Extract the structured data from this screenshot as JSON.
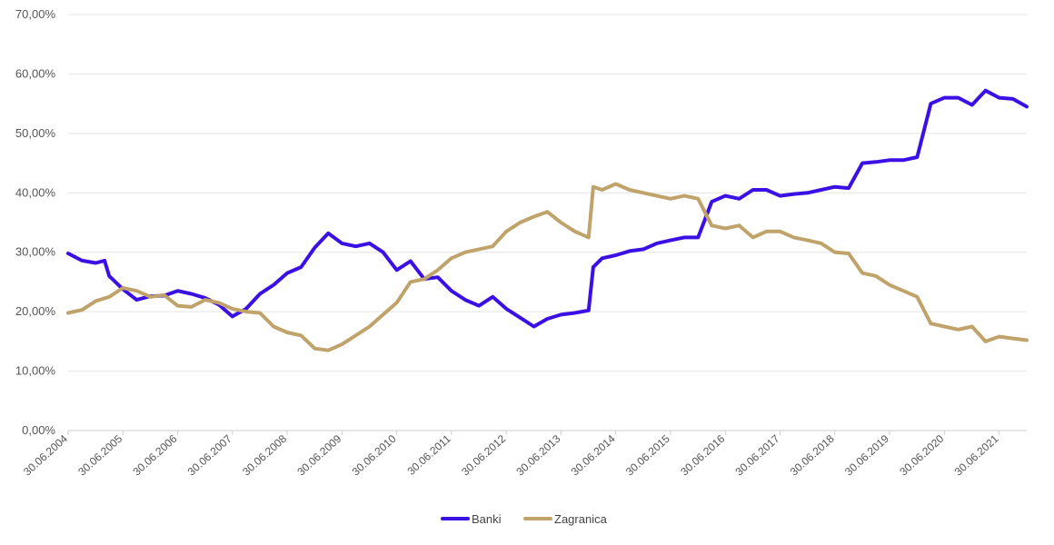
{
  "chart_data": {
    "type": "line",
    "title": "",
    "xlabel": "",
    "ylabel": "",
    "ylim": [
      0,
      70
    ],
    "ytick_values": [
      0,
      10,
      20,
      30,
      40,
      50,
      60,
      70
    ],
    "ytick_labels": [
      "0,00%",
      "10,00%",
      "20,00%",
      "30,00%",
      "40,00%",
      "50,00%",
      "60,00%",
      "70,00%"
    ],
    "xlim": [
      "2004-06-30",
      "2021-12-31"
    ],
    "x_ticks": [
      {
        "date": "2004-06-30",
        "label": "30.06.2004"
      },
      {
        "date": "2005-06-30",
        "label": "30.06.2005"
      },
      {
        "date": "2006-06-30",
        "label": "30.06.2006"
      },
      {
        "date": "2007-06-30",
        "label": "30.06.2007"
      },
      {
        "date": "2008-06-30",
        "label": "30.06.2008"
      },
      {
        "date": "2009-06-30",
        "label": "30.06.2009"
      },
      {
        "date": "2010-06-30",
        "label": "30.06.2010"
      },
      {
        "date": "2011-06-30",
        "label": "30.06.2011"
      },
      {
        "date": "2012-06-30",
        "label": "30.06.2012"
      },
      {
        "date": "2013-06-30",
        "label": "30.06.2013"
      },
      {
        "date": "2014-06-30",
        "label": "30.06.2014"
      },
      {
        "date": "2015-06-30",
        "label": "30.06.2015"
      },
      {
        "date": "2016-06-30",
        "label": "30.06.2016"
      },
      {
        "date": "2017-06-30",
        "label": "30.06.2017"
      },
      {
        "date": "2018-06-30",
        "label": "30.06.2018"
      },
      {
        "date": "2019-06-30",
        "label": "30.06.2019"
      },
      {
        "date": "2020-06-30",
        "label": "30.06.2020"
      },
      {
        "date": "2021-06-30",
        "label": "30.06.2021"
      }
    ],
    "grid": true,
    "legend_position": "bottom-center",
    "series": [
      {
        "name": "Banki",
        "color": "#3a10e5",
        "points": [
          [
            "2004-06-30",
            29.8
          ],
          [
            "2004-09-30",
            28.6
          ],
          [
            "2004-12-31",
            28.2
          ],
          [
            "2005-02-28",
            28.6
          ],
          [
            "2005-03-31",
            26.0
          ],
          [
            "2005-06-30",
            23.8
          ],
          [
            "2005-09-30",
            22.0
          ],
          [
            "2005-12-31",
            22.6
          ],
          [
            "2006-03-31",
            22.7
          ],
          [
            "2006-06-30",
            23.5
          ],
          [
            "2006-09-30",
            23.0
          ],
          [
            "2006-12-31",
            22.3
          ],
          [
            "2007-03-31",
            21.2
          ],
          [
            "2007-06-30",
            19.2
          ],
          [
            "2007-09-30",
            20.5
          ],
          [
            "2007-12-31",
            23.0
          ],
          [
            "2008-03-31",
            24.5
          ],
          [
            "2008-06-30",
            26.5
          ],
          [
            "2008-09-30",
            27.5
          ],
          [
            "2008-12-31",
            30.8
          ],
          [
            "2009-03-31",
            33.2
          ],
          [
            "2009-06-30",
            31.5
          ],
          [
            "2009-09-30",
            31.0
          ],
          [
            "2009-12-31",
            31.5
          ],
          [
            "2010-03-31",
            30.0
          ],
          [
            "2010-06-30",
            27.0
          ],
          [
            "2010-09-30",
            28.5
          ],
          [
            "2010-12-31",
            25.5
          ],
          [
            "2011-03-31",
            25.8
          ],
          [
            "2011-06-30",
            23.5
          ],
          [
            "2011-09-30",
            22.0
          ],
          [
            "2011-12-31",
            21.0
          ],
          [
            "2012-03-31",
            22.5
          ],
          [
            "2012-06-30",
            20.5
          ],
          [
            "2012-09-30",
            19.0
          ],
          [
            "2012-12-31",
            17.5
          ],
          [
            "2013-03-31",
            18.8
          ],
          [
            "2013-06-30",
            19.5
          ],
          [
            "2013-09-30",
            19.8
          ],
          [
            "2013-12-31",
            20.2
          ],
          [
            "2014-01-31",
            27.5
          ],
          [
            "2014-03-31",
            29.0
          ],
          [
            "2014-06-30",
            29.5
          ],
          [
            "2014-09-30",
            30.2
          ],
          [
            "2014-12-31",
            30.5
          ],
          [
            "2015-03-31",
            31.5
          ],
          [
            "2015-06-30",
            32.0
          ],
          [
            "2015-09-30",
            32.5
          ],
          [
            "2015-12-31",
            32.5
          ],
          [
            "2016-03-31",
            38.5
          ],
          [
            "2016-06-30",
            39.5
          ],
          [
            "2016-09-30",
            39.0
          ],
          [
            "2016-12-31",
            40.5
          ],
          [
            "2017-03-31",
            40.5
          ],
          [
            "2017-06-30",
            39.5
          ],
          [
            "2017-09-30",
            39.8
          ],
          [
            "2017-12-31",
            40.0
          ],
          [
            "2018-03-31",
            40.5
          ],
          [
            "2018-06-30",
            41.0
          ],
          [
            "2018-09-30",
            40.8
          ],
          [
            "2018-12-31",
            45.0
          ],
          [
            "2019-03-31",
            45.2
          ],
          [
            "2019-06-30",
            45.5
          ],
          [
            "2019-09-30",
            45.5
          ],
          [
            "2019-12-31",
            46.0
          ],
          [
            "2020-03-31",
            55.0
          ],
          [
            "2020-06-30",
            56.0
          ],
          [
            "2020-09-30",
            56.0
          ],
          [
            "2020-12-31",
            54.8
          ],
          [
            "2021-03-31",
            57.2
          ],
          [
            "2021-06-30",
            56.0
          ],
          [
            "2021-09-30",
            55.8
          ],
          [
            "2021-12-31",
            54.5
          ]
        ]
      },
      {
        "name": "Zagranica",
        "color": "#bfa36b",
        "points": [
          [
            "2004-06-30",
            19.8
          ],
          [
            "2004-09-30",
            20.3
          ],
          [
            "2004-12-31",
            21.8
          ],
          [
            "2005-03-31",
            22.5
          ],
          [
            "2005-06-30",
            24.0
          ],
          [
            "2005-09-30",
            23.5
          ],
          [
            "2005-12-31",
            22.5
          ],
          [
            "2006-03-31",
            22.8
          ],
          [
            "2006-06-30",
            21.0
          ],
          [
            "2006-09-30",
            20.8
          ],
          [
            "2006-12-31",
            22.0
          ],
          [
            "2007-03-31",
            21.5
          ],
          [
            "2007-06-30",
            20.5
          ],
          [
            "2007-09-30",
            20.0
          ],
          [
            "2007-12-31",
            19.8
          ],
          [
            "2008-03-31",
            17.5
          ],
          [
            "2008-06-30",
            16.5
          ],
          [
            "2008-09-30",
            16.0
          ],
          [
            "2008-12-31",
            13.8
          ],
          [
            "2009-03-31",
            13.5
          ],
          [
            "2009-06-30",
            14.5
          ],
          [
            "2009-09-30",
            16.0
          ],
          [
            "2009-12-31",
            17.5
          ],
          [
            "2010-03-31",
            19.5
          ],
          [
            "2010-06-30",
            21.5
          ],
          [
            "2010-09-30",
            25.0
          ],
          [
            "2010-12-31",
            25.5
          ],
          [
            "2011-03-31",
            27.0
          ],
          [
            "2011-06-30",
            29.0
          ],
          [
            "2011-09-30",
            30.0
          ],
          [
            "2011-12-31",
            30.5
          ],
          [
            "2012-03-31",
            31.0
          ],
          [
            "2012-06-30",
            33.5
          ],
          [
            "2012-09-30",
            35.0
          ],
          [
            "2012-12-31",
            36.0
          ],
          [
            "2013-03-31",
            36.8
          ],
          [
            "2013-06-30",
            35.0
          ],
          [
            "2013-09-30",
            33.5
          ],
          [
            "2013-12-31",
            32.5
          ],
          [
            "2014-01-31",
            41.0
          ],
          [
            "2014-03-31",
            40.5
          ],
          [
            "2014-06-30",
            41.5
          ],
          [
            "2014-09-30",
            40.5
          ],
          [
            "2014-12-31",
            40.0
          ],
          [
            "2015-03-31",
            39.5
          ],
          [
            "2015-06-30",
            39.0
          ],
          [
            "2015-09-30",
            39.5
          ],
          [
            "2015-12-31",
            39.0
          ],
          [
            "2016-03-31",
            34.5
          ],
          [
            "2016-06-30",
            34.0
          ],
          [
            "2016-09-30",
            34.5
          ],
          [
            "2016-12-31",
            32.5
          ],
          [
            "2017-03-31",
            33.5
          ],
          [
            "2017-06-30",
            33.5
          ],
          [
            "2017-09-30",
            32.5
          ],
          [
            "2017-12-31",
            32.0
          ],
          [
            "2018-03-31",
            31.5
          ],
          [
            "2018-06-30",
            30.0
          ],
          [
            "2018-09-30",
            29.8
          ],
          [
            "2018-12-31",
            26.5
          ],
          [
            "2019-03-31",
            26.0
          ],
          [
            "2019-06-30",
            24.5
          ],
          [
            "2019-09-30",
            23.5
          ],
          [
            "2019-12-31",
            22.5
          ],
          [
            "2020-03-31",
            18.0
          ],
          [
            "2020-06-30",
            17.5
          ],
          [
            "2020-09-30",
            17.0
          ],
          [
            "2020-12-31",
            17.5
          ],
          [
            "2021-03-31",
            15.0
          ],
          [
            "2021-06-30",
            15.8
          ],
          [
            "2021-09-30",
            15.5
          ],
          [
            "2021-12-31",
            15.2
          ]
        ]
      }
    ]
  }
}
